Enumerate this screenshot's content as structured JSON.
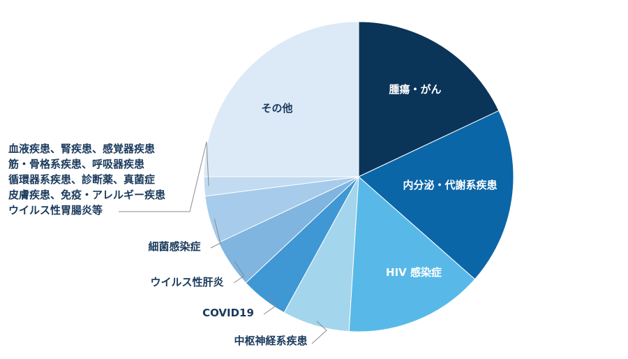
{
  "chart_data": {
    "type": "pie",
    "slices": [
      {
        "label": "腫瘍・がん",
        "value": 18.0,
        "color": "#0b3558",
        "text_color": "#ffffff"
      },
      {
        "label": "内分泌・代謝系疾患",
        "value": 18.5,
        "color": "#0b66a8",
        "text_color": "#ffffff"
      },
      {
        "label": "HIV 感染症",
        "value": 14.5,
        "color": "#58b9e9",
        "text_color": "#ffffff"
      },
      {
        "label": "中枢神経系疾患",
        "value": 7.0,
        "color": "#a3d5ec",
        "text_color": "#1a3a5c"
      },
      {
        "label": "COVID19",
        "value": 5.0,
        "color": "#3f97d4",
        "text_color": "#1a3a5c"
      },
      {
        "label": "ウイルス性肝炎",
        "value": 5.0,
        "color": "#7fb5df",
        "text_color": "#1a3a5c"
      },
      {
        "label": "細菌感染症",
        "value": 5.0,
        "color": "#a7cbea",
        "text_color": "#1a3a5c"
      },
      {
        "label_lines": [
          "血液疾患、腎疾患、感覚器疾患",
          "筋・骨格系疾患、呼吸器疾患",
          "循環器系疾患、診断薬、真菌症",
          "皮膚疾患、免疫・アレルギー疾患",
          "ウイルス性胃腸炎等"
        ],
        "value": 2.0,
        "color": "#c3dbf1",
        "text_color": "#1a3a5c"
      },
      {
        "label": "その他",
        "value": 25.0,
        "color": "#dce9f7",
        "text_color": "#1a3a5c"
      }
    ]
  }
}
